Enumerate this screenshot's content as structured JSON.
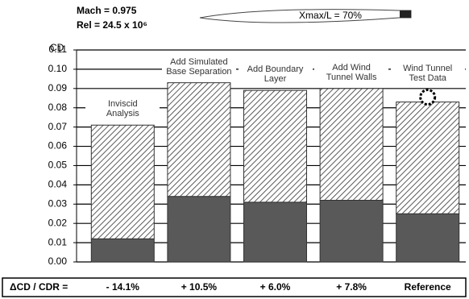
{
  "chart_data": {
    "type": "bar",
    "stacked": true,
    "annotations": [
      "Mach = 0.975",
      "Rel = 24.5 x 10⁶",
      "Xmax/L = 70%"
    ],
    "ylabel": "CD",
    "categories": [
      "Inviscid\nAnalysis",
      "Add Simulated\nBase Separation",
      "Add Boundary\nLayer",
      "Add Wind\nTunnel Walls",
      "Wind Tunnel\nTest Data"
    ],
    "series": [
      {
        "color": "#595959",
        "values": [
          0.012,
          0.034,
          0.031,
          0.032,
          0.025
        ]
      },
      {
        "color": "#ffffff",
        "hatch": "diagonal",
        "values": [
          0.059,
          0.059,
          0.058,
          0.058,
          0.058
        ]
      }
    ],
    "ylim": [
      0,
      0.11
    ],
    "yticks": [
      {
        "value": 0,
        "label": "0.00"
      },
      {
        "value": 0.01,
        "label": "0.01"
      },
      {
        "value": 0.02,
        "label": "0.02"
      },
      {
        "value": 0.03,
        "label": "0.03"
      },
      {
        "value": 0.04,
        "label": "0.04"
      },
      {
        "value": 0.05,
        "label": "0.05"
      },
      {
        "value": 0.06,
        "label": "0.06"
      },
      {
        "value": 0.07,
        "label": "0.07"
      },
      {
        "value": 0.08,
        "label": "0.08"
      },
      {
        "value": 0.09,
        "label": "0.09"
      },
      {
        "value": 0.1,
        "label": "0.10"
      },
      {
        "value": 0.11,
        "label": "0.11"
      }
    ],
    "grid": true,
    "delta_row": {
      "label": "ΔCD / CDR =",
      "values": [
        "- 14.1%",
        "+ 10.5%",
        "+ 6.0%",
        "+ 7.8%",
        "Reference"
      ]
    }
  }
}
